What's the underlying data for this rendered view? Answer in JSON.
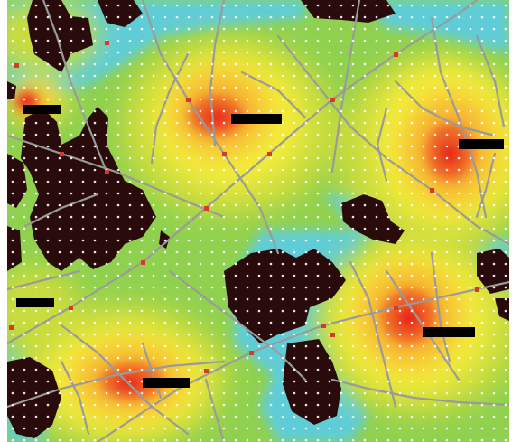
{
  "map": {
    "type": "heatmap overlay on street network with sample-point grid",
    "color_scale": [
      "#5fcdd8",
      "#8fd14f",
      "#c9dc3e",
      "#f4ec3a",
      "#f7b531",
      "#ef6428",
      "#e8251f"
    ],
    "colors": {
      "obstacle": "#2a0b0b",
      "street": "#9a9a9a",
      "node": "#d83a2a",
      "sample_point": "#ffffff",
      "label_box": "#000000"
    },
    "hotspots": [
      {
        "name": "hotspot-north",
        "intensity": 1.0
      },
      {
        "name": "hotspot-east",
        "intensity": 0.9
      },
      {
        "name": "hotspot-southeast",
        "intensity": 1.0
      },
      {
        "name": "hotspot-southwest",
        "intensity": 0.95
      }
    ],
    "labels": [
      {
        "name": "label-northwest",
        "text": ""
      },
      {
        "name": "label-north",
        "text": ""
      },
      {
        "name": "label-east",
        "text": ""
      },
      {
        "name": "label-west",
        "text": ""
      },
      {
        "name": "label-southeast",
        "text": ""
      },
      {
        "name": "label-southwest",
        "text": ""
      }
    ]
  }
}
